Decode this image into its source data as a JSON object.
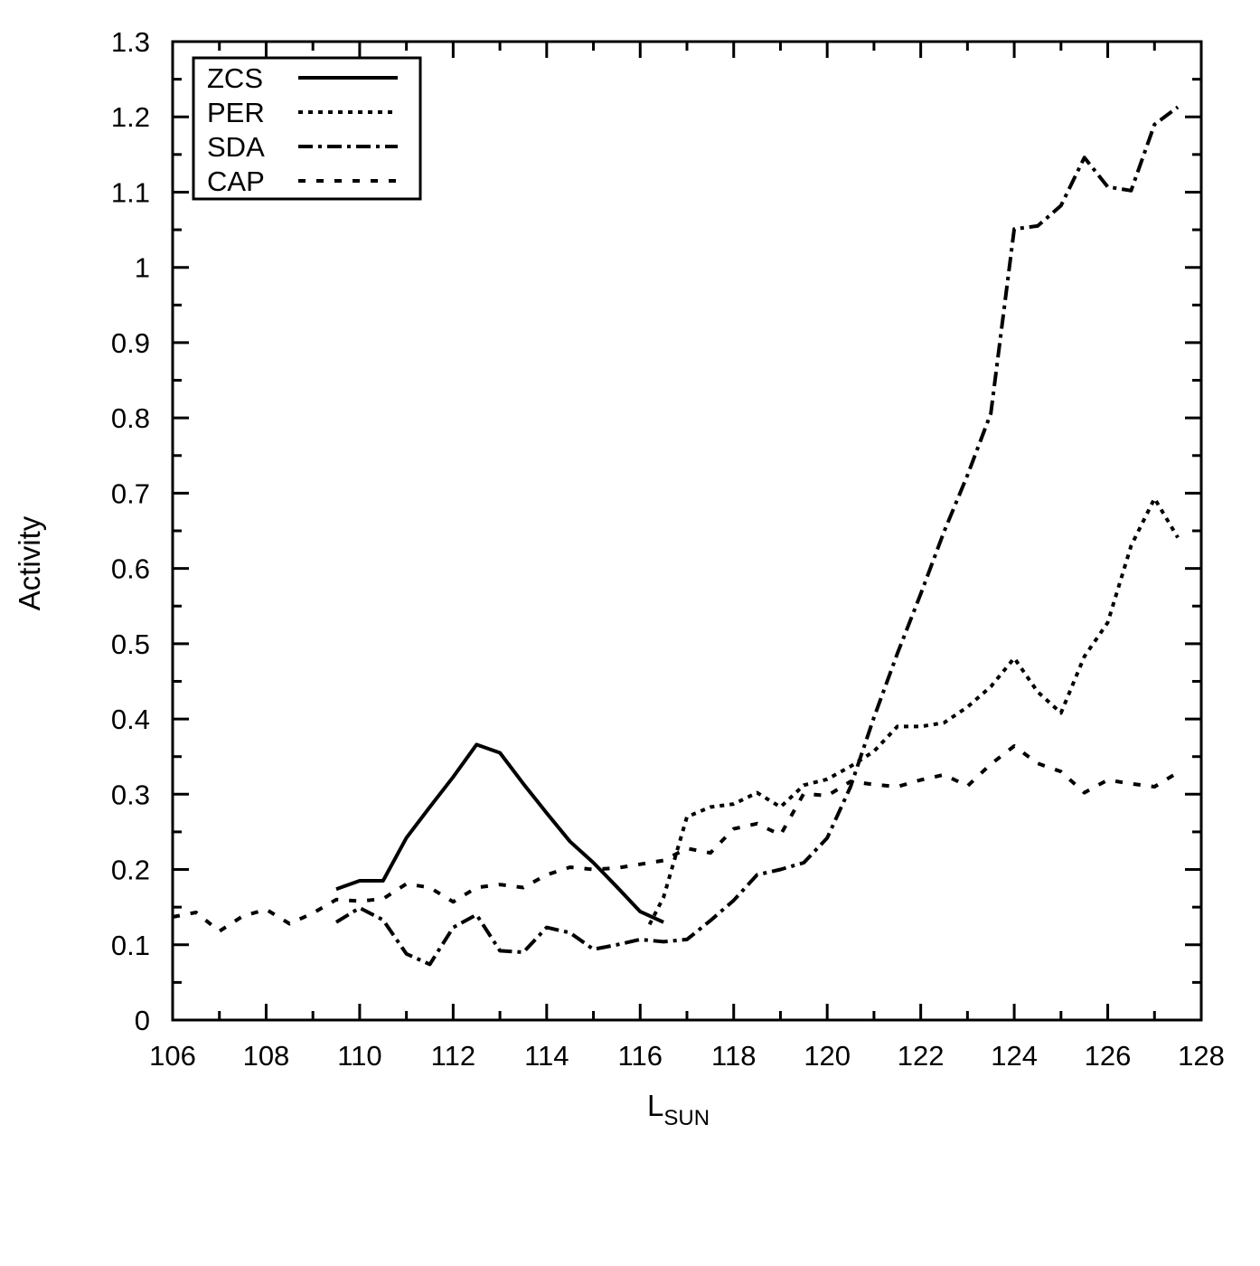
{
  "chart_data": {
    "type": "line",
    "title": "",
    "xlabel": {
      "main": "L",
      "sub": "SUN"
    },
    "ylabel": "Activity",
    "xlim": [
      106,
      128
    ],
    "ylim": [
      0,
      1.3
    ],
    "xticks": [
      "106",
      "108",
      "110",
      "112",
      "114",
      "116",
      "118",
      "120",
      "122",
      "124",
      "126",
      "128"
    ],
    "yticks": [
      "0",
      "0.1",
      "0.2",
      "0.3",
      "0.4",
      "0.5",
      "0.6",
      "0.7",
      "0.8",
      "0.9",
      "1",
      "1.1",
      "1.2",
      "1.3"
    ],
    "grid": false,
    "legend_position": "top-left",
    "color": "#000000",
    "series": [
      {
        "name": "ZCS",
        "dash": "solid",
        "x": [
          109.5,
          110,
          110.5,
          111,
          111.5,
          112,
          112.5,
          113,
          113.5,
          114,
          114.5,
          115,
          115.5,
          116,
          116.5
        ],
        "y": [
          0.174,
          0.185,
          0.185,
          0.242,
          0.283,
          0.323,
          0.366,
          0.355,
          0.314,
          0.275,
          0.237,
          0.209,
          0.177,
          0.144,
          0.13
        ]
      },
      {
        "name": "PER",
        "dash": "dotted",
        "x": [
          116.2,
          116.5,
          117,
          117.5,
          118,
          118.5,
          119,
          119.5,
          120,
          120.5,
          121,
          121.5,
          122,
          122.5,
          123,
          123.5,
          124,
          124.5,
          125,
          125.5,
          126,
          126.5,
          127,
          127.5
        ],
        "y": [
          0.127,
          0.163,
          0.27,
          0.283,
          0.287,
          0.302,
          0.283,
          0.312,
          0.32,
          0.337,
          0.357,
          0.39,
          0.39,
          0.395,
          0.416,
          0.443,
          0.481,
          0.436,
          0.408,
          0.483,
          0.528,
          0.63,
          0.693,
          0.641
        ]
      },
      {
        "name": "SDA",
        "dash": "dash-dot",
        "x": [
          109.5,
          110,
          110.5,
          111,
          111.5,
          112,
          112.5,
          113,
          113.5,
          114,
          114.5,
          115,
          115.5,
          116,
          116.5,
          117,
          117.5,
          118,
          118.5,
          119,
          119.5,
          120,
          120.5,
          121,
          121.5,
          122,
          122.5,
          123,
          123.5,
          124,
          124.5,
          125,
          125.5,
          126,
          126.5,
          127,
          127.5
        ],
        "y": [
          0.13,
          0.149,
          0.133,
          0.088,
          0.074,
          0.123,
          0.14,
          0.092,
          0.09,
          0.123,
          0.116,
          0.094,
          0.1,
          0.107,
          0.104,
          0.107,
          0.132,
          0.159,
          0.193,
          0.2,
          0.209,
          0.242,
          0.31,
          0.402,
          0.487,
          0.566,
          0.649,
          0.724,
          0.806,
          1.051,
          1.055,
          1.082,
          1.146,
          1.107,
          1.102,
          1.19,
          1.213
        ]
      },
      {
        "name": "CAP",
        "dash": "dashed",
        "x": [
          106,
          106.5,
          107,
          107.5,
          108,
          108.5,
          109,
          109.5,
          110,
          110.5,
          111,
          111.5,
          112,
          112.5,
          113,
          113.5,
          114,
          114.5,
          115,
          115.5,
          116,
          116.5,
          117,
          117.5,
          118,
          118.5,
          119,
          119.5,
          120,
          120.5,
          121,
          121.5,
          122,
          122.5,
          123,
          123.5,
          124,
          124.5,
          125,
          125.5,
          126,
          126.5,
          127,
          127.5
        ],
        "y": [
          0.137,
          0.143,
          0.118,
          0.138,
          0.147,
          0.128,
          0.142,
          0.16,
          0.158,
          0.161,
          0.181,
          0.176,
          0.157,
          0.176,
          0.18,
          0.176,
          0.193,
          0.203,
          0.2,
          0.202,
          0.207,
          0.212,
          0.228,
          0.222,
          0.254,
          0.261,
          0.246,
          0.301,
          0.298,
          0.317,
          0.313,
          0.31,
          0.319,
          0.326,
          0.311,
          0.34,
          0.364,
          0.341,
          0.33,
          0.302,
          0.319,
          0.314,
          0.31,
          0.329
        ]
      }
    ]
  }
}
